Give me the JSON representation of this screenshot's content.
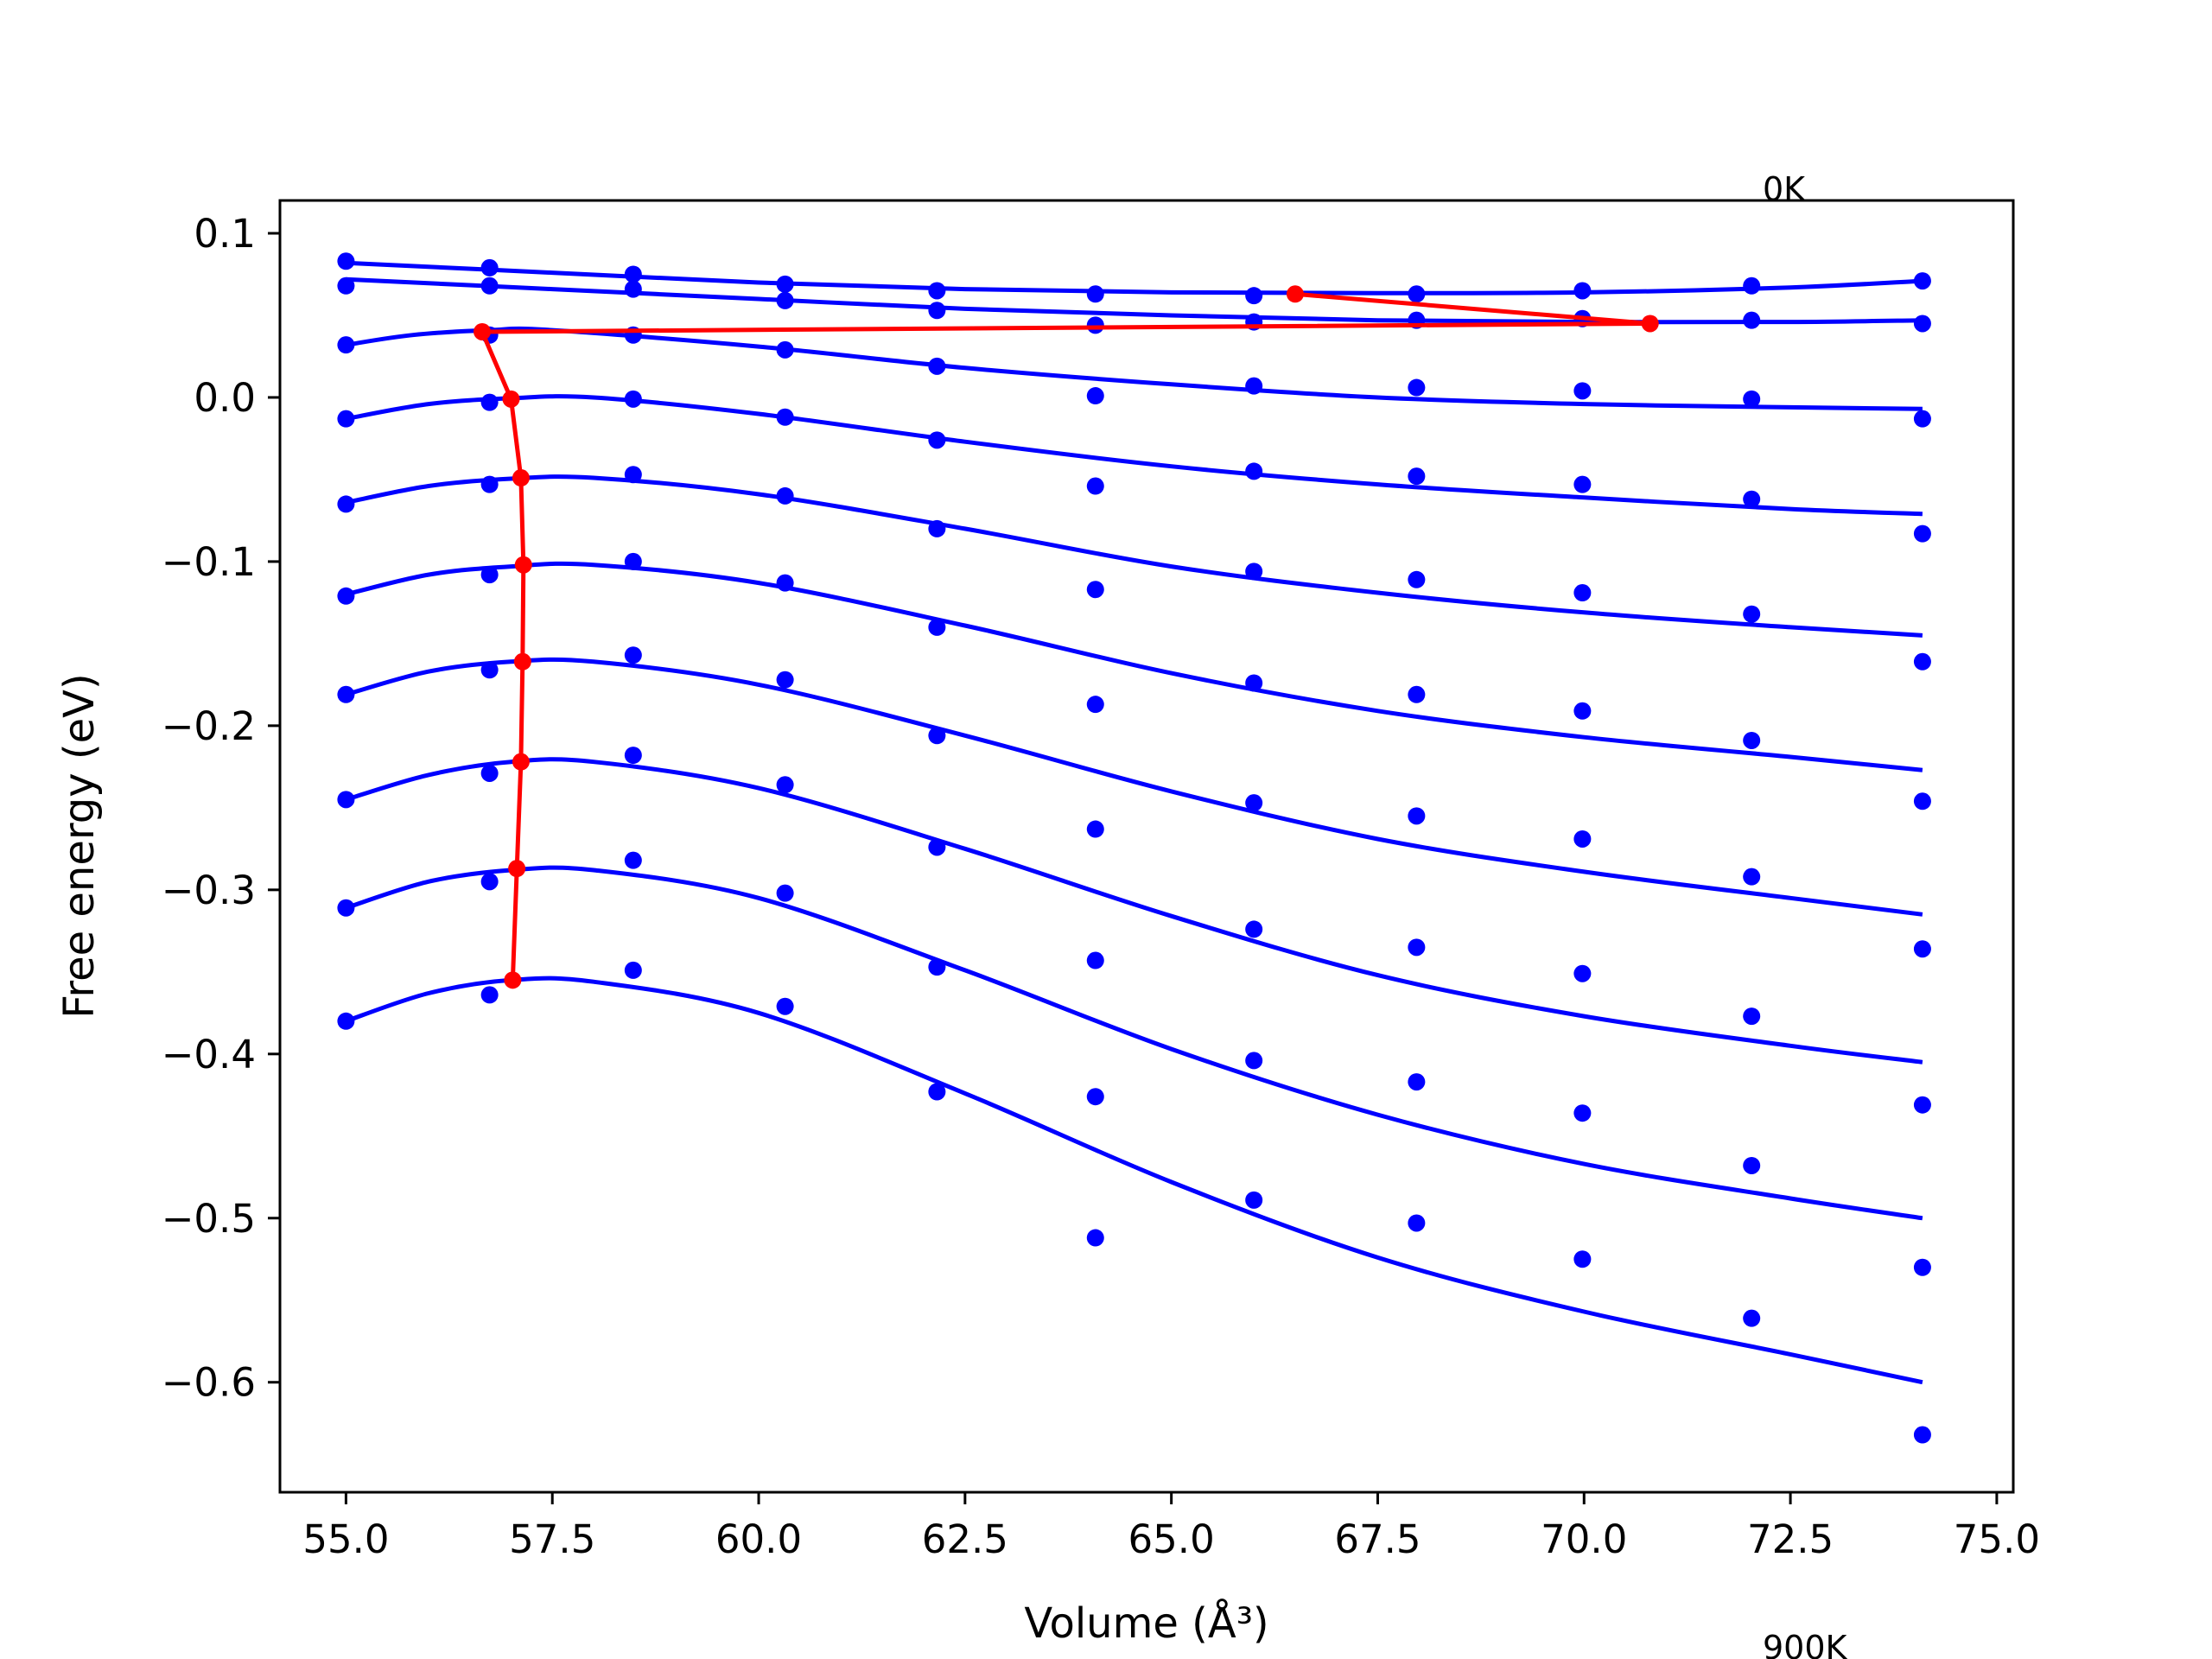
{
  "chart_data": {
    "type": "line",
    "title": "",
    "xlabel": "Volume (Å³)",
    "ylabel": "Free energy (eV)",
    "xlim": [
      54.2,
      75.2
    ],
    "ylim": [
      -0.667,
      0.12
    ],
    "xticks": [
      "55.0",
      "57.5",
      "60.0",
      "62.5",
      "65.0",
      "67.5",
      "70.0",
      "72.5",
      "75.0"
    ],
    "yticks": [
      "0.1",
      "0.0",
      "−0.1",
      "−0.2",
      "−0.3",
      "−0.4",
      "−0.5",
      "−0.6"
    ],
    "annotations": [
      "0K",
      "900K"
    ],
    "grid": false,
    "colors": {
      "curves": "#0000ff",
      "minima": "#ff0000",
      "axes": "#000000"
    },
    "x": [
      55.0,
      56.74,
      58.48,
      60.32,
      62.16,
      64.08,
      66.0,
      67.97,
      69.98,
      72.03,
      74.1
    ],
    "series": [
      {
        "points": [
          0.083,
          0.079,
          0.075,
          0.069,
          0.065,
          0.063,
          0.062,
          0.063,
          0.065,
          0.068,
          0.071
        ],
        "fit": [
          [
            55.0,
            0.082
          ],
          [
            57.5,
            0.076
          ],
          [
            60.0,
            0.07
          ],
          [
            62.5,
            0.066
          ],
          [
            65.0,
            0.064
          ],
          [
            67.5,
            0.0635
          ],
          [
            70.0,
            0.064
          ],
          [
            72.5,
            0.067
          ],
          [
            74.1,
            0.071
          ]
        ]
      },
      {
        "points": [
          0.068,
          0.068,
          0.066,
          0.059,
          0.053,
          0.044,
          0.046,
          0.047,
          0.048,
          0.047,
          0.045
        ],
        "fit": [
          [
            55.0,
            0.072
          ],
          [
            57.5,
            0.066
          ],
          [
            60.0,
            0.06
          ],
          [
            62.5,
            0.054
          ],
          [
            65.0,
            0.05
          ],
          [
            67.5,
            0.047
          ],
          [
            70.0,
            0.046
          ],
          [
            72.5,
            0.046
          ],
          [
            74.1,
            0.047
          ]
        ]
      },
      {
        "points": [
          0.032,
          0.038,
          0.038,
          0.029,
          0.019,
          0.001,
          0.007,
          0.006,
          0.004,
          -0.001,
          -0.013
        ],
        "fit": [
          [
            55.0,
            0.032
          ],
          [
            55.8,
            0.038
          ],
          [
            56.74,
            0.041
          ],
          [
            57.5,
            0.041
          ],
          [
            60.0,
            0.031
          ],
          [
            62.5,
            0.018
          ],
          [
            65.0,
            0.008
          ],
          [
            67.5,
            0.0
          ],
          [
            70.0,
            -0.004
          ],
          [
            72.5,
            -0.006
          ],
          [
            74.1,
            -0.007
          ]
        ]
      },
      {
        "points": [
          -0.013,
          -0.003,
          -0.001,
          -0.012,
          -0.026,
          -0.054,
          -0.045,
          -0.048,
          -0.053,
          -0.062,
          -0.083
        ],
        "fit": [
          [
            55.0,
            -0.013
          ],
          [
            56.0,
            -0.004
          ],
          [
            57.0,
            -0.0005
          ],
          [
            58.0,
            0.0
          ],
          [
            60.0,
            -0.01
          ],
          [
            62.5,
            -0.027
          ],
          [
            65.0,
            -0.042
          ],
          [
            67.5,
            -0.053
          ],
          [
            70.0,
            -0.061
          ],
          [
            72.5,
            -0.068
          ],
          [
            74.1,
            -0.071
          ]
        ]
      },
      {
        "points": [
          -0.065,
          -0.053,
          -0.047,
          -0.06,
          -0.08,
          -0.117,
          -0.106,
          -0.111,
          -0.119,
          -0.132,
          -0.161
        ],
        "fit": [
          [
            55.0,
            -0.064
          ],
          [
            56.0,
            -0.054
          ],
          [
            57.0,
            -0.0495
          ],
          [
            58.0,
            -0.049
          ],
          [
            60.0,
            -0.059
          ],
          [
            62.5,
            -0.08
          ],
          [
            65.0,
            -0.103
          ],
          [
            67.5,
            -0.119
          ],
          [
            70.0,
            -0.131
          ],
          [
            72.5,
            -0.14
          ],
          [
            74.1,
            -0.145
          ]
        ]
      },
      {
        "points": [
          -0.121,
          -0.108,
          -0.1,
          -0.113,
          -0.14,
          -0.187,
          -0.174,
          -0.181,
          -0.191,
          -0.209,
          -0.246
        ],
        "fit": [
          [
            55.0,
            -0.12
          ],
          [
            56.0,
            -0.108
          ],
          [
            57.0,
            -0.103
          ],
          [
            58.0,
            -0.102
          ],
          [
            60.0,
            -0.113
          ],
          [
            62.5,
            -0.139
          ],
          [
            65.0,
            -0.168
          ],
          [
            67.5,
            -0.191
          ],
          [
            70.0,
            -0.207
          ],
          [
            72.5,
            -0.219
          ],
          [
            74.1,
            -0.227
          ]
        ]
      },
      {
        "points": [
          -0.181,
          -0.166,
          -0.157,
          -0.172,
          -0.206,
          -0.263,
          -0.247,
          -0.255,
          -0.269,
          -0.292,
          -0.336
        ],
        "fit": [
          [
            55.0,
            -0.181
          ],
          [
            56.0,
            -0.167
          ],
          [
            57.0,
            -0.161
          ],
          [
            58.0,
            -0.161
          ],
          [
            60.0,
            -0.175
          ],
          [
            62.5,
            -0.206
          ],
          [
            65.0,
            -0.24
          ],
          [
            67.5,
            -0.269
          ],
          [
            70.0,
            -0.289
          ],
          [
            72.5,
            -0.305
          ],
          [
            74.1,
            -0.315
          ]
        ]
      },
      {
        "points": [
          -0.245,
          -0.229,
          -0.218,
          -0.236,
          -0.274,
          -0.343,
          -0.324,
          -0.335,
          -0.351,
          -0.377,
          -0.431
        ],
        "fit": [
          [
            55.0,
            -0.245
          ],
          [
            56.0,
            -0.23
          ],
          [
            57.0,
            -0.222
          ],
          [
            58.0,
            -0.222
          ],
          [
            60.0,
            -0.238
          ],
          [
            62.5,
            -0.275
          ],
          [
            65.0,
            -0.316
          ],
          [
            67.5,
            -0.352
          ],
          [
            70.0,
            -0.377
          ],
          [
            72.5,
            -0.395
          ],
          [
            74.1,
            -0.405
          ]
        ]
      },
      {
        "points": [
          -0.311,
          -0.295,
          -0.282,
          -0.302,
          -0.347,
          -0.426,
          -0.404,
          -0.417,
          -0.436,
          -0.468,
          -0.53
        ],
        "fit": [
          [
            55.0,
            -0.311
          ],
          [
            56.0,
            -0.295
          ],
          [
            57.0,
            -0.288
          ],
          [
            58.0,
            -0.288
          ],
          [
            60.0,
            -0.305
          ],
          [
            62.5,
            -0.349
          ],
          [
            65.0,
            -0.397
          ],
          [
            67.5,
            -0.437
          ],
          [
            70.0,
            -0.467
          ],
          [
            72.5,
            -0.488
          ],
          [
            74.1,
            -0.5
          ]
        ]
      },
      {
        "points": [
          -0.38,
          -0.364,
          -0.349,
          -0.371,
          -0.423,
          -0.512,
          -0.489,
          -0.503,
          -0.525,
          -0.561,
          -0.632
        ],
        "fit": [
          [
            55.0,
            -0.38
          ],
          [
            56.0,
            -0.363
          ],
          [
            57.0,
            -0.355
          ],
          [
            58.0,
            -0.356
          ],
          [
            60.0,
            -0.375
          ],
          [
            62.5,
            -0.424
          ],
          [
            65.0,
            -0.478
          ],
          [
            67.5,
            -0.524
          ],
          [
            70.0,
            -0.557
          ],
          [
            72.5,
            -0.583
          ],
          [
            74.1,
            -0.6
          ]
        ]
      }
    ],
    "minima_line": [
      [
        66.5,
        0.063
      ],
      [
        70.8,
        0.045
      ],
      [
        56.65,
        0.04
      ],
      [
        57.0,
        -0.001
      ],
      [
        57.12,
        -0.049
      ],
      [
        57.15,
        -0.102
      ],
      [
        57.14,
        -0.161
      ],
      [
        57.12,
        -0.222
      ],
      [
        57.07,
        -0.287
      ],
      [
        57.02,
        -0.355
      ]
    ]
  }
}
